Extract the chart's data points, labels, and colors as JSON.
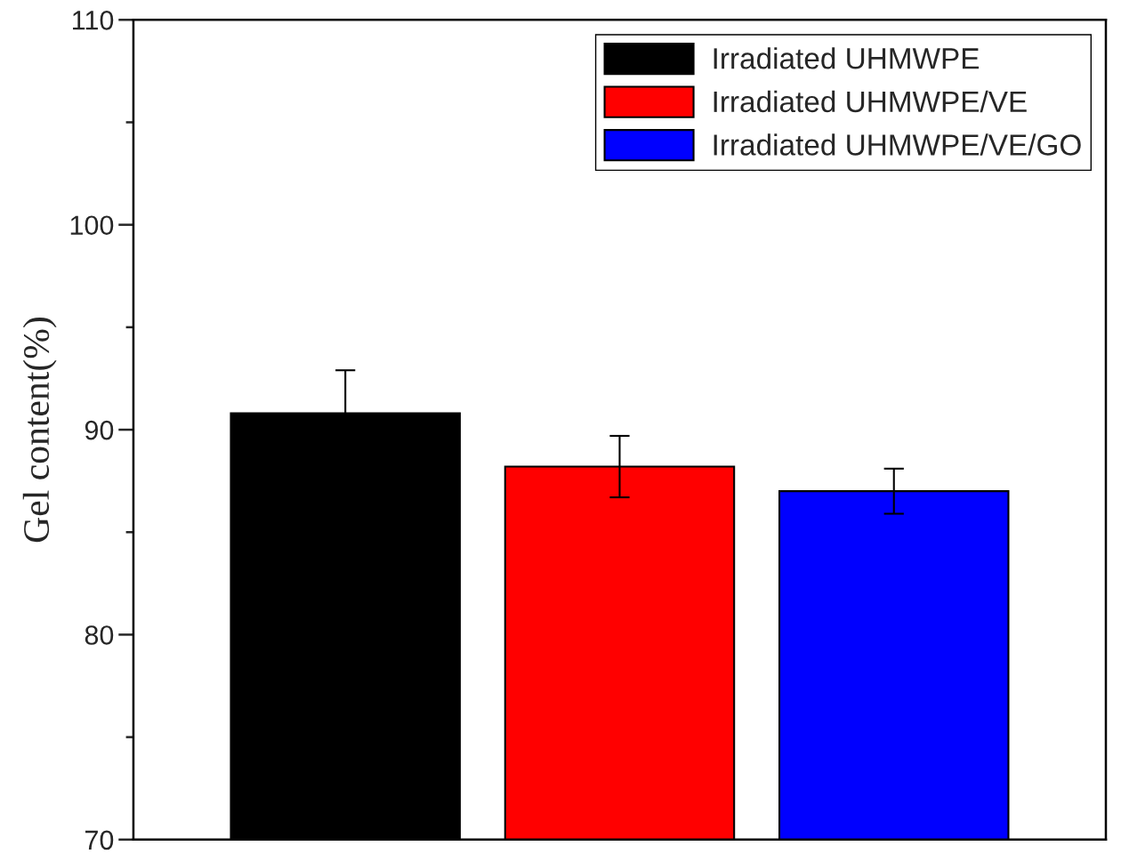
{
  "chart_data": {
    "type": "bar",
    "ylabel": "Gel content(%)",
    "categories": [
      null
    ],
    "series": [
      {
        "name": "Irradiated UHMWPE",
        "color": "#000000",
        "values": [
          90.8
        ],
        "errors": [
          2.1
        ]
      },
      {
        "name": "Irradiated UHMWPE/VE",
        "color": "#ff0000",
        "values": [
          88.2
        ],
        "errors": [
          1.5
        ]
      },
      {
        "name": "Irradiated UHMWPE/VE/GO",
        "color": "#0000ff",
        "values": [
          87.0
        ],
        "errors": [
          1.1
        ]
      }
    ],
    "ylim": [
      70,
      110
    ],
    "yticks": [
      70,
      {
        "value": 75,
        "label": null
      },
      80,
      {
        "value": 85,
        "label": null
      },
      90,
      {
        "value": 95,
        "label": null
      },
      100,
      {
        "value": 105,
        "label": null
      },
      110
    ],
    "legend": "top right",
    "grid": false
  }
}
